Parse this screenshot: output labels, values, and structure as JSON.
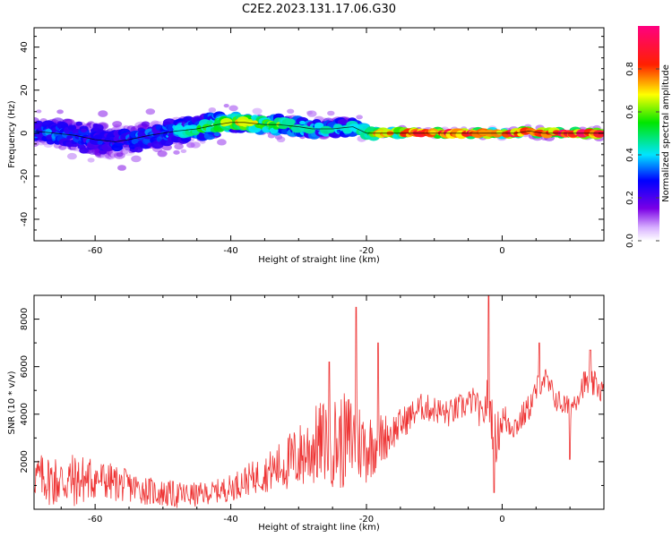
{
  "title": "C2E2.2023.131.17.06.G30",
  "colors": {
    "snr_line": "#ee3333",
    "signal_track": "#000000",
    "axis": "#000000"
  },
  "chart_data": [
    {
      "type": "heatmap",
      "xlabel": "Height of straight line (km)",
      "ylabel": "Frequency (Hz)",
      "xlim": [
        -69,
        15
      ],
      "ylim": [
        -50,
        49
      ],
      "xticks": [
        -60,
        -40,
        -20,
        0
      ],
      "yticks": [
        -40,
        -20,
        0,
        20,
        40
      ],
      "tick_labels_x": [
        "-60",
        "-40",
        "-20",
        "0"
      ],
      "tick_labels_y": [
        "-40",
        "-20",
        "0",
        "20",
        "40"
      ],
      "colorbar": {
        "label": "Normalized spectral amplitude",
        "range": [
          0,
          1
        ],
        "ticks": [
          "0.0",
          "0.2",
          "0.4",
          "0.6",
          "0.8"
        ],
        "tick_values": [
          0.0,
          0.2,
          0.4,
          0.6,
          0.8
        ],
        "colormap": "rainbow (white-purple-blue-cyan-green-yellow-red-magenta)"
      },
      "frequency_track": {
        "x": [
          -69,
          -66,
          -63,
          -60,
          -57,
          -55,
          -52,
          -50,
          -48,
          -45,
          -42,
          -40,
          -38,
          -35,
          -33,
          -30,
          -28,
          -25,
          -22,
          -20,
          -18,
          -15,
          -12,
          -10,
          -8,
          -6,
          -4,
          -2,
          0,
          2,
          4,
          6,
          8,
          10,
          12,
          15
        ],
        "y": [
          1,
          0,
          -1,
          -3,
          -4,
          -3,
          -1,
          0,
          1,
          2,
          4,
          5,
          5,
          4,
          4,
          3,
          2,
          2,
          3,
          0,
          0,
          0,
          0,
          0,
          0,
          0,
          0,
          0,
          0,
          0,
          1,
          0,
          0,
          0,
          0,
          0
        ],
        "spread": [
          4,
          5,
          5,
          6,
          6,
          5,
          5,
          4,
          4,
          4,
          4,
          3,
          3,
          3,
          3,
          3,
          3,
          3,
          3,
          2,
          1,
          1,
          1,
          1,
          1,
          1,
          1,
          1,
          1,
          1,
          1,
          1,
          1,
          1,
          1,
          1
        ],
        "amplitude": [
          0.3,
          0.3,
          0.28,
          0.26,
          0.24,
          0.26,
          0.3,
          0.34,
          0.4,
          0.48,
          0.56,
          0.65,
          0.7,
          0.62,
          0.55,
          0.48,
          0.44,
          0.4,
          0.42,
          0.55,
          0.75,
          0.85,
          0.9,
          0.92,
          0.92,
          0.88,
          0.84,
          0.8,
          0.84,
          0.88,
          0.9,
          0.88,
          0.88,
          0.9,
          0.9,
          0.88
        ]
      }
    },
    {
      "type": "line",
      "xlabel": "Height of straight line (km)",
      "ylabel": "SNR (10 * v/v)",
      "xlim": [
        -69,
        15
      ],
      "ylim": [
        0,
        9000
      ],
      "xticks": [
        -60,
        -40,
        -20,
        0
      ],
      "yticks": [
        2000,
        4000,
        6000,
        8000
      ],
      "tick_labels_x": [
        "-60",
        "-40",
        "-20",
        "0"
      ],
      "tick_labels_y": [
        "2000",
        "4000",
        "6000",
        "8000"
      ],
      "series": [
        {
          "x": [
            -69,
            -66,
            -63,
            -60,
            -57,
            -54,
            -51,
            -48,
            -45,
            -43,
            -40,
            -38,
            -35,
            -32,
            -30,
            -28,
            -26,
            -24,
            -22,
            -20,
            -18,
            -16,
            -14,
            -12,
            -10,
            -8,
            -6,
            -4,
            -3,
            -2,
            -1,
            0,
            2,
            4,
            6,
            8,
            10,
            12,
            14,
            15
          ],
          "mean": [
            1400,
            1200,
            1200,
            1300,
            1100,
            900,
            700,
            600,
            600,
            700,
            900,
            1200,
            1500,
            1900,
            2200,
            2600,
            2900,
            2800,
            3000,
            2600,
            2900,
            3300,
            3800,
            4300,
            4200,
            4000,
            4300,
            4600,
            3800,
            4800,
            2800,
            3800,
            3500,
            4300,
            5600,
            4600,
            4200,
            5300,
            5200,
            4900
          ],
          "noise": [
            700,
            900,
            900,
            700,
            600,
            500,
            450,
            450,
            400,
            350,
            450,
            500,
            600,
            900,
            1100,
            1300,
            1400,
            1600,
            1500,
            1200,
            900,
            600,
            500,
            450,
            450,
            450,
            450,
            450,
            500,
            800,
            900,
            600,
            450,
            450,
            450,
            400,
            400,
            450,
            450,
            450
          ]
        }
      ]
    }
  ]
}
